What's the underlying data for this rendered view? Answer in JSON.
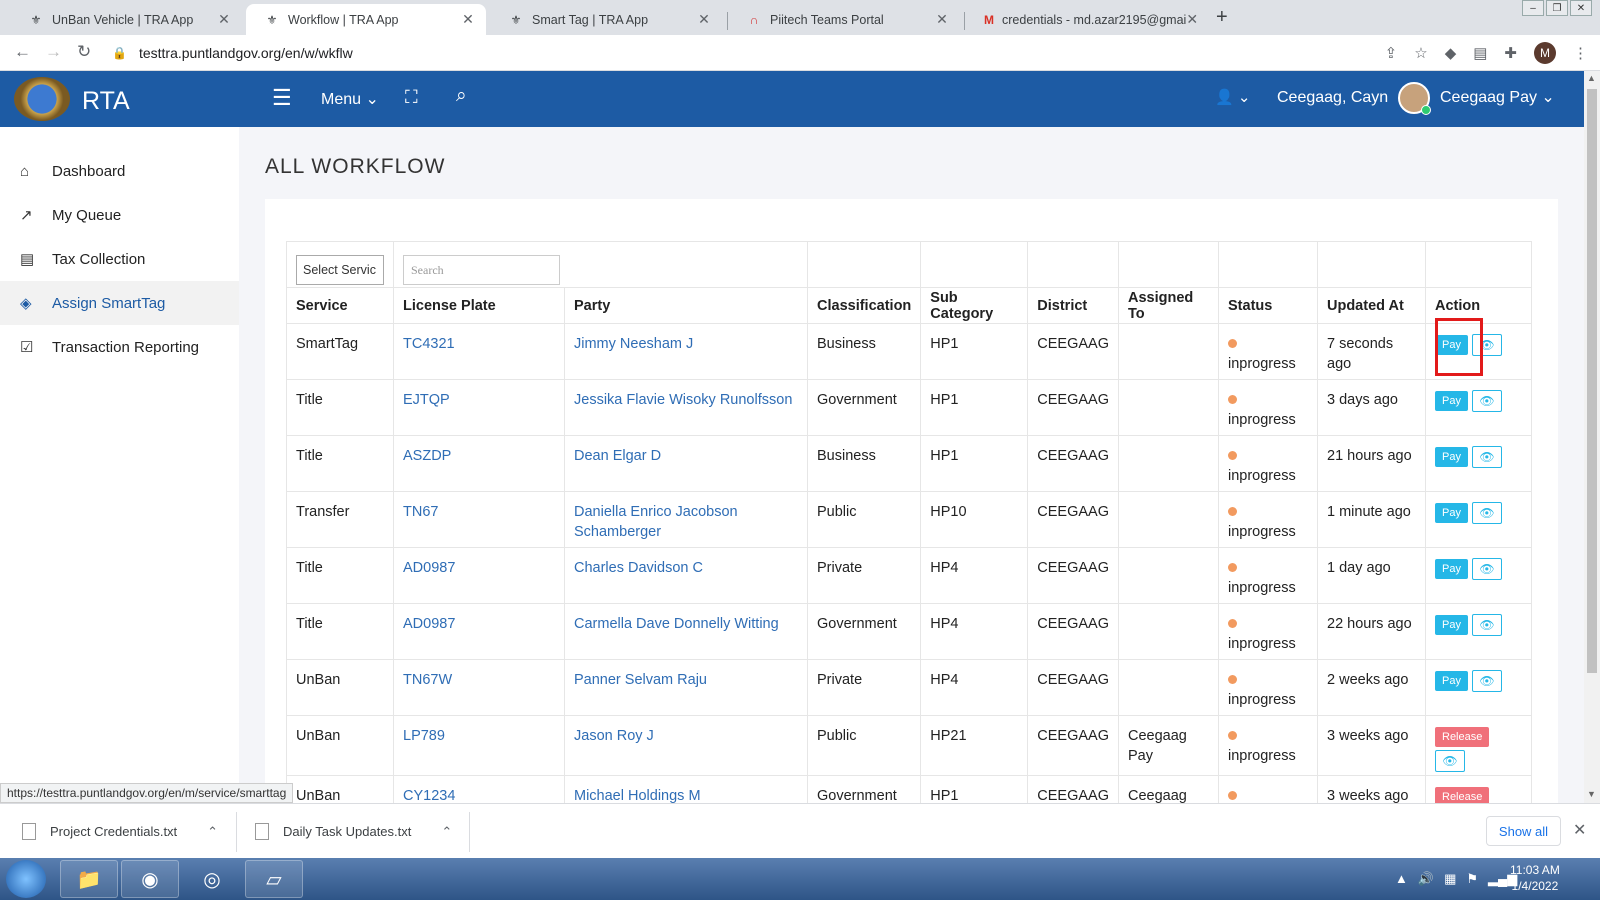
{
  "browser": {
    "tabs": [
      {
        "title": "UnBan Vehicle | TRA App",
        "active": false
      },
      {
        "title": "Workflow | TRA App",
        "active": true
      },
      {
        "title": "Smart Tag | TRA App",
        "active": false
      },
      {
        "title": "Piitech Teams Portal",
        "active": false
      },
      {
        "title": "credentials - md.azar2195@gmai",
        "active": false
      }
    ],
    "url": "testtra.puntlandgov.org/en/w/wkflw",
    "status_url": "https://testtra.puntlandgov.org/en/m/service/smarttag",
    "profile_initial": "M"
  },
  "header": {
    "brand": "RTA",
    "menu_label": "Menu",
    "user_name": "Ceegaag, Cayn",
    "role": "Ceegaag Pay"
  },
  "sidebar": {
    "items": [
      {
        "label": "Dashboard",
        "icon": "home-icon"
      },
      {
        "label": "My Queue",
        "icon": "trend-icon"
      },
      {
        "label": "Tax Collection",
        "icon": "card-icon"
      },
      {
        "label": "Assign SmartTag",
        "icon": "tags-icon",
        "active": true
      },
      {
        "label": "Transaction Reporting",
        "icon": "check-square-icon"
      }
    ]
  },
  "main": {
    "title": "ALL WORKFLOW",
    "filter": {
      "select_placeholder": "Select Servic",
      "search_placeholder": "Search"
    },
    "columns": [
      "Service",
      "License Plate",
      "Party",
      "Classification",
      "Sub Category",
      "District",
      "Assigned To",
      "Status",
      "Updated At",
      "Action"
    ],
    "rows": [
      {
        "service": "SmartTag",
        "plate": "TC4321",
        "party": "Jimmy Neesham J",
        "classification": "Business",
        "sub": "HP1",
        "district": "CEEGAAG",
        "assigned": "",
        "status": "inprogress",
        "updated": "7 seconds ago",
        "action": "Pay"
      },
      {
        "service": "Title",
        "plate": "EJTQP",
        "party": "Jessika Flavie Wisoky Runolfsson",
        "classification": "Government",
        "sub": "HP1",
        "district": "CEEGAAG",
        "assigned": "",
        "status": "inprogress",
        "updated": "3 days ago",
        "action": "Pay"
      },
      {
        "service": "Title",
        "plate": "ASZDP",
        "party": "Dean Elgar D",
        "classification": "Business",
        "sub": "HP1",
        "district": "CEEGAAG",
        "assigned": "",
        "status": "inprogress",
        "updated": "21 hours ago",
        "action": "Pay"
      },
      {
        "service": "Transfer",
        "plate": "TN67",
        "party": "Daniella Enrico Jacobson Schamberger",
        "classification": "Public",
        "sub": "HP10",
        "district": "CEEGAAG",
        "assigned": "",
        "status": "inprogress",
        "updated": "1 minute ago",
        "action": "Pay"
      },
      {
        "service": "Title",
        "plate": "AD0987",
        "party": "Charles Davidson C",
        "classification": "Private",
        "sub": "HP4",
        "district": "CEEGAAG",
        "assigned": "",
        "status": "inprogress",
        "updated": "1 day ago",
        "action": "Pay"
      },
      {
        "service": "Title",
        "plate": "AD0987",
        "party": "Carmella Dave Donnelly Witting",
        "classification": "Government",
        "sub": "HP4",
        "district": "CEEGAAG",
        "assigned": "",
        "status": "inprogress",
        "updated": "22 hours ago",
        "action": "Pay"
      },
      {
        "service": "UnBan",
        "plate": "TN67W",
        "party": "Panner Selvam Raju",
        "classification": "Private",
        "sub": "HP4",
        "district": "CEEGAAG",
        "assigned": "",
        "status": "inprogress",
        "updated": "2 weeks ago",
        "action": "Pay"
      },
      {
        "service": "UnBan",
        "plate": "LP789",
        "party": "Jason Roy J",
        "classification": "Public",
        "sub": "HP21",
        "district": "CEEGAAG",
        "assigned": "Ceegaag Pay",
        "status": "inprogress",
        "updated": "3 weeks ago",
        "action": "Release"
      },
      {
        "service": "UnBan",
        "plate": "CY1234",
        "party": "Michael Holdings M",
        "classification": "Government",
        "sub": "HP1",
        "district": "CEEGAAG",
        "assigned": "Ceegaag",
        "status": "",
        "updated": "3 weeks ago",
        "action": "Release"
      }
    ]
  },
  "downloads": [
    {
      "name": "Project Credentials.txt"
    },
    {
      "name": "Daily Task Updates.txt"
    }
  ],
  "downloads_show_all": "Show all",
  "taskbar": {
    "time": "11:03 AM",
    "date": "1/4/2022"
  },
  "colors": {
    "header": "#1d5ba4",
    "pay": "#25b7e7",
    "release": "#f0707a",
    "status_dot": "#f29a5f",
    "highlight": "#e21a1a"
  }
}
